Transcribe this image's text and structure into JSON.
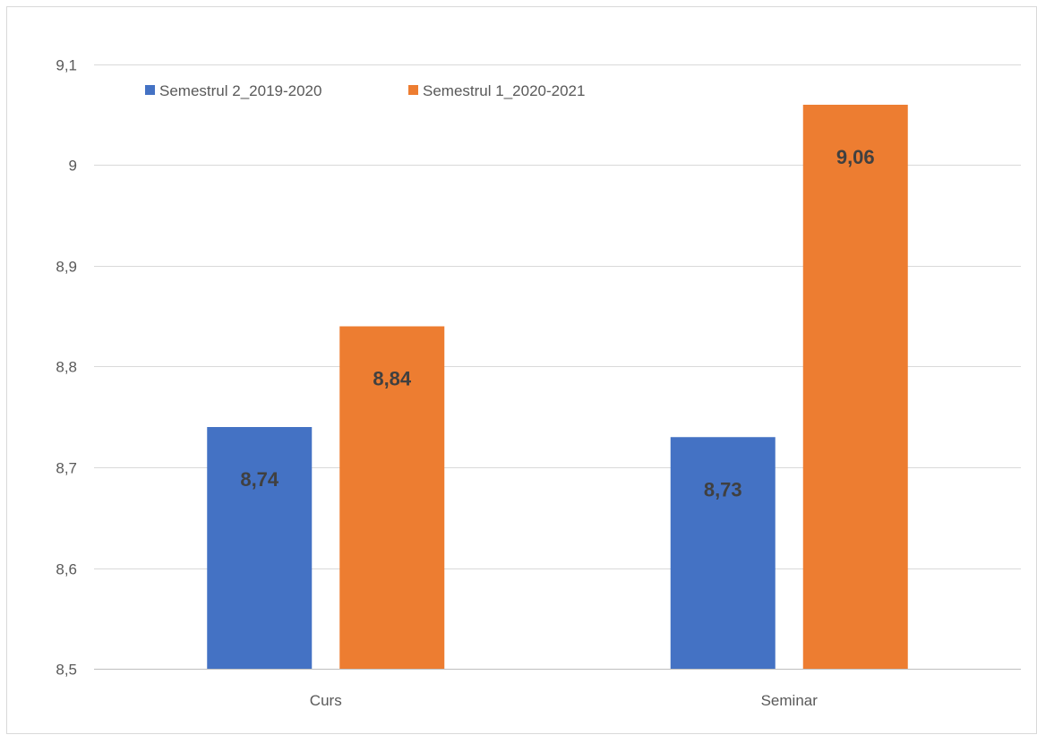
{
  "chart_data": {
    "type": "bar",
    "categories": [
      "Curs",
      "Seminar"
    ],
    "series": [
      {
        "name": "Semestrul 2_2019-2020",
        "values": [
          8.74,
          8.73
        ],
        "labels": [
          "8,74",
          "8,73"
        ],
        "color": "#4472C4"
      },
      {
        "name": "Semestrul 1_2020-2021",
        "values": [
          8.84,
          9.06
        ],
        "labels": [
          "8,84",
          "9,06"
        ],
        "color": "#ED7D31"
      }
    ],
    "yticks": [
      8.5,
      8.6,
      8.7,
      8.8,
      8.9,
      9.0,
      9.1
    ],
    "ytick_labels": [
      "8,5",
      "8,6",
      "8,7",
      "8,8",
      "8,9",
      "9",
      "9,1"
    ],
    "ylim": [
      8.5,
      9.1
    ],
    "grid": true,
    "legend_position": "top-left",
    "gridline_color": "#D9D9D9",
    "axis_color": "#BFBFBF",
    "frame_color": "#D9D9D9"
  }
}
